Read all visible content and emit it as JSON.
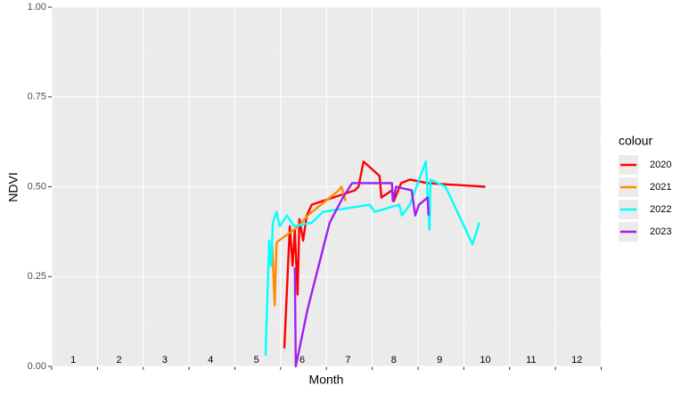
{
  "chart_data": {
    "type": "line",
    "x_label": "Month",
    "y_label": "NDVI",
    "legend_title": "colour",
    "xlim": [
      0.53,
      12.54
    ],
    "ylim": [
      0,
      1
    ],
    "xgrid": [
      0.53,
      1.53,
      2.53,
      3.53,
      4.53,
      5.53,
      6.53,
      7.53,
      8.53,
      9.53,
      10.53,
      11.53,
      12.53
    ],
    "yticks": [
      {
        "value": 0,
        "label": "0.00"
      },
      {
        "value": 0.25,
        "label": "0.25"
      },
      {
        "value": 0.5,
        "label": "0.50"
      },
      {
        "value": 0.75,
        "label": "0.75"
      },
      {
        "value": 1,
        "label": "1.00"
      }
    ],
    "y_minor": [
      0.125,
      0.375,
      0.625,
      0.875
    ],
    "month_labels": [
      1,
      2,
      3,
      4,
      5,
      6,
      7,
      8,
      9,
      10,
      11,
      12
    ],
    "grid": true,
    "series": [
      {
        "name": "2020",
        "color": "#ff0000",
        "x": [
          5.61,
          5.73,
          5.79,
          5.84,
          5.9,
          5.94,
          6.02,
          6.1,
          6.21,
          7.15,
          7.23,
          7.34,
          7.69,
          7.73,
          7.96,
          8.0,
          8.16,
          8.35,
          8.74,
          10.0
        ],
        "values": [
          0.05,
          0.39,
          0.28,
          0.38,
          0.2,
          0.41,
          0.35,
          0.42,
          0.45,
          0.49,
          0.5,
          0.57,
          0.53,
          0.47,
          0.49,
          0.46,
          0.51,
          0.52,
          0.51,
          0.5
        ]
      },
      {
        "name": "2021",
        "color": "#ff8c00",
        "x": [
          5.34,
          5.4,
          5.44,
          5.92,
          6.12,
          6.8,
          6.86,
          6.95
        ],
        "values": [
          0.35,
          0.17,
          0.345,
          0.39,
          0.42,
          0.49,
          0.5,
          0.46
        ]
      },
      {
        "name": "2022",
        "color": "#00ffff",
        "x": [
          5.2,
          5.28,
          5.32,
          5.36,
          5.44,
          5.51,
          5.67,
          5.82,
          6.21,
          6.45,
          7.48,
          7.58,
          8.12,
          8.18,
          8.35,
          8.7,
          8.78,
          8.8,
          9.13,
          9.72,
          9.87
        ],
        "values": [
          0.03,
          0.35,
          0.28,
          0.4,
          0.43,
          0.39,
          0.42,
          0.39,
          0.4,
          0.43,
          0.45,
          0.43,
          0.45,
          0.42,
          0.45,
          0.57,
          0.38,
          0.52,
          0.5,
          0.34,
          0.4
        ]
      },
      {
        "name": "2023",
        "color": "#a020f0",
        "x": [
          5.84,
          5.86,
          6.12,
          6.6,
          6.89,
          7.09,
          7.96,
          7.98,
          8.05,
          8.39,
          8.47,
          8.51,
          8.55,
          8.74,
          8.76
        ],
        "values": [
          0.275,
          0.0,
          0.16,
          0.4,
          0.47,
          0.51,
          0.51,
          0.46,
          0.5,
          0.49,
          0.42,
          0.435,
          0.45,
          0.47,
          0.42
        ]
      }
    ]
  }
}
